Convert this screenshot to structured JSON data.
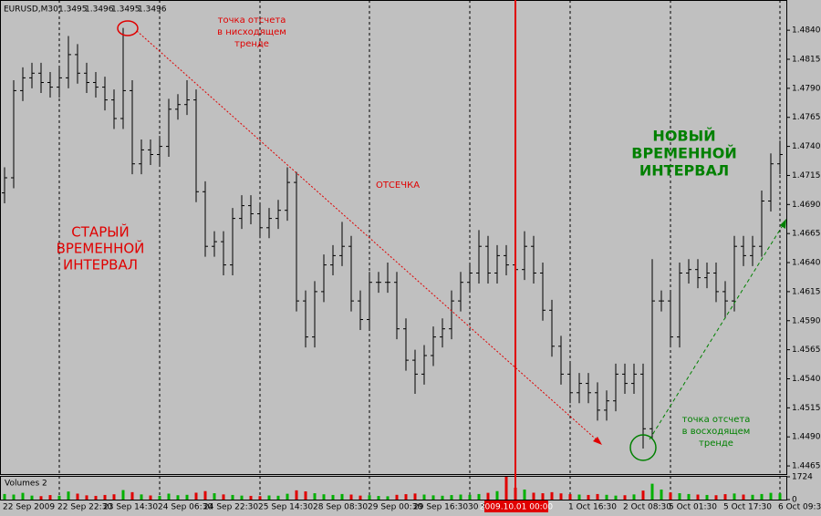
{
  "chart_data": {
    "type": "ohlc",
    "symbol": "EURUSD,M30",
    "header_values": [
      1.3495,
      1.3496,
      1.3495,
      1.3496
    ],
    "categories": [
      "22 Sep 2009",
      null,
      null,
      null,
      null,
      null,
      "22 Sep 22:30",
      null,
      null,
      null,
      null,
      "23 Sep 14:30",
      null,
      null,
      null,
      null,
      null,
      "24 Sep 06:30",
      null,
      null,
      null,
      null,
      "24 Sep 22:30",
      null,
      null,
      null,
      null,
      null,
      "25 Sep 14:30",
      null,
      null,
      null,
      null,
      null,
      "28 Sep 08:30",
      null,
      null,
      null,
      null,
      null,
      "29 Sep 00:30",
      null,
      null,
      null,
      null,
      "29 Sep 16:30",
      null,
      null,
      null,
      null,
      null,
      "30 Sep 08:30",
      null,
      null,
      null,
      null,
      "2009.10.01 00:00",
      null,
      null,
      null,
      null,
      null,
      "1 Oct 16:30",
      null,
      null,
      null,
      null,
      null,
      "2 Oct 08:30",
      null,
      null,
      null,
      null,
      "5 Oct 01:30",
      null,
      null,
      null,
      null,
      null,
      "5 Oct 17:30",
      null,
      null,
      null,
      null,
      null,
      "6 Oct 09:30"
    ],
    "cursor": "2009.10.01 00:00",
    "open": [
      1.47,
      1.4713,
      1.4788,
      1.4799,
      1.4803,
      1.4795,
      1.4791,
      1.4799,
      1.4819,
      1.4803,
      1.4795,
      1.4791,
      1.478,
      1.4764,
      1.4788,
      1.4725,
      1.4737,
      1.4733,
      1.474,
      1.4772,
      1.4776,
      1.478,
      1.4701,
      1.4654,
      1.4658,
      1.4638,
      1.4678,
      1.4689,
      1.4682,
      1.467,
      1.4678,
      1.4685,
      1.4709,
      1.4607,
      1.4576,
      1.4615,
      1.4638,
      1.4646,
      1.4654,
      1.4607,
      1.4591,
      1.4623,
      1.4623,
      1.4623,
      1.4583,
      1.4556,
      1.4544,
      1.456,
      1.4576,
      1.4583,
      1.4607,
      1.4623,
      1.4631,
      1.4654,
      1.4631,
      1.4646,
      1.4638,
      1.4634,
      1.4654,
      1.4631,
      1.4599,
      1.4568,
      1.4544,
      1.4528,
      1.4536,
      1.4528,
      1.4513,
      1.4521,
      1.4544,
      1.4536,
      1.4544,
      1.4497,
      1.4607,
      1.4607,
      1.4576,
      1.4631,
      1.4634,
      1.4627,
      1.4631,
      1.4615,
      1.4607,
      1.4654,
      1.4646,
      1.4654,
      1.4693,
      1.4725
    ],
    "high": [
      1.4722,
      1.4797,
      1.4808,
      1.4812,
      1.4812,
      1.4804,
      1.4808,
      1.4835,
      1.4828,
      1.4812,
      1.4804,
      1.48,
      1.4789,
      1.4842,
      1.4797,
      1.4746,
      1.4746,
      1.4749,
      1.4781,
      1.4785,
      1.4797,
      1.4789,
      1.471,
      1.4667,
      1.4667,
      1.4687,
      1.4698,
      1.4698,
      1.4691,
      1.4687,
      1.4694,
      1.4722,
      1.4718,
      1.4616,
      1.4624,
      1.4647,
      1.4655,
      1.4675,
      1.4663,
      1.4616,
      1.4632,
      1.4632,
      1.464,
      1.4632,
      1.4592,
      1.4565,
      1.4569,
      1.4585,
      1.4592,
      1.4616,
      1.4632,
      1.464,
      1.4668,
      1.4663,
      1.4655,
      1.4655,
      1.4647,
      1.4667,
      1.4663,
      1.464,
      1.4608,
      1.4577,
      1.4553,
      1.4545,
      1.4545,
      1.4537,
      1.453,
      1.4553,
      1.4553,
      1.4553,
      1.4553,
      1.4643,
      1.4616,
      1.4616,
      1.464,
      1.4643,
      1.4643,
      1.464,
      1.464,
      1.4624,
      1.4663,
      1.4663,
      1.4663,
      1.4702,
      1.4734,
      1.4745
    ],
    "low": [
      1.4691,
      1.4704,
      1.4779,
      1.479,
      1.4786,
      1.4782,
      1.4782,
      1.479,
      1.4794,
      1.4786,
      1.4782,
      1.4771,
      1.4755,
      1.4755,
      1.4716,
      1.4716,
      1.4724,
      1.4724,
      1.4731,
      1.4763,
      1.4767,
      1.4692,
      1.4645,
      1.4645,
      1.4629,
      1.4629,
      1.4669,
      1.4673,
      1.4661,
      1.4661,
      1.4669,
      1.4676,
      1.4598,
      1.4567,
      1.4567,
      1.4606,
      1.4629,
      1.4637,
      1.4598,
      1.4582,
      1.4582,
      1.4614,
      1.4614,
      1.4574,
      1.4547,
      1.4527,
      1.4535,
      1.4551,
      1.4567,
      1.4574,
      1.4598,
      1.4614,
      1.4622,
      1.4622,
      1.4622,
      1.4629,
      1.4625,
      1.4625,
      1.4622,
      1.459,
      1.4559,
      1.4535,
      1.4519,
      1.4519,
      1.4519,
      1.4504,
      1.4504,
      1.4512,
      1.4527,
      1.4527,
      1.448,
      1.4488,
      1.4598,
      1.4567,
      1.4567,
      1.4622,
      1.4618,
      1.4618,
      1.4606,
      1.4592,
      1.4598,
      1.4637,
      1.4637,
      1.4645,
      1.4684,
      1.4716
    ],
    "close": [
      1.4713,
      1.4788,
      1.4799,
      1.4803,
      1.4795,
      1.4791,
      1.4799,
      1.4819,
      1.4803,
      1.4795,
      1.4791,
      1.478,
      1.4764,
      1.4788,
      1.4725,
      1.4737,
      1.4733,
      1.474,
      1.4772,
      1.4776,
      1.478,
      1.4701,
      1.4654,
      1.4658,
      1.4638,
      1.4678,
      1.4689,
      1.4682,
      1.467,
      1.4678,
      1.4685,
      1.4709,
      1.4607,
      1.4576,
      1.4615,
      1.4638,
      1.4646,
      1.4654,
      1.4607,
      1.4591,
      1.4623,
      1.4623,
      1.4623,
      1.4583,
      1.4556,
      1.4544,
      1.456,
      1.4576,
      1.4583,
      1.4607,
      1.4623,
      1.4631,
      1.4654,
      1.4631,
      1.4646,
      1.4638,
      1.4634,
      1.4654,
      1.4631,
      1.4599,
      1.4568,
      1.4544,
      1.4528,
      1.4536,
      1.4528,
      1.4513,
      1.4521,
      1.4544,
      1.4536,
      1.4544,
      1.4497,
      1.4607,
      1.4607,
      1.4576,
      1.4631,
      1.4634,
      1.4627,
      1.4631,
      1.4615,
      1.4607,
      1.4654,
      1.4646,
      1.4654,
      1.4693,
      1.4725,
      1.4733
    ],
    "bar_color": "#000000",
    "ylim": [
      1.4458,
      1.4866
    ],
    "yticks": [
      {
        "value": 1.484,
        "label": "1.4840"
      },
      1.4815,
      {
        "value": 1.479,
        "label": "1.4790"
      },
      1.4765,
      {
        "value": 1.474,
        "label": "1.4740"
      },
      1.4715,
      {
        "value": 1.469,
        "label": "1.4690"
      },
      1.4665,
      {
        "value": 1.464,
        "label": "1.4640"
      },
      1.4615,
      {
        "value": 1.459,
        "label": "1.4590"
      },
      1.4565,
      {
        "value": 1.454,
        "label": "1.4540"
      },
      1.4515,
      {
        "value": 1.449,
        "label": "1.4490"
      },
      1.4465
    ],
    "grid": true,
    "volume": {
      "title": "Volumes 2",
      "ylim": [
        0,
        1724
      ],
      "yticks": [
        0,
        1724
      ],
      "up_color": "#00b000",
      "down_color": "#e00000",
      "values": [
        420,
        380,
        510,
        300,
        260,
        340,
        290,
        610,
        450,
        320,
        280,
        350,
        400,
        720,
        560,
        390,
        310,
        280,
        450,
        330,
        360,
        520,
        640,
        480,
        390,
        350,
        300,
        280,
        260,
        310,
        290,
        440,
        700,
        620,
        480,
        400,
        350,
        420,
        380,
        300,
        330,
        270,
        250,
        360,
        410,
        460,
        380,
        320,
        290,
        340,
        380,
        360,
        420,
        510,
        640,
        1724,
        900,
        760,
        520,
        480,
        560,
        470,
        410,
        380,
        350,
        420,
        360,
        300,
        330,
        390,
        680,
        1200,
        760,
        540,
        480,
        420,
        380,
        350,
        330,
        410,
        460,
        380,
        360,
        420,
        510,
        470
      ]
    },
    "annotations": [
      {
        "lines": [
          "точка отсчета",
          "в нисходящем",
          "тренде"
        ],
        "color": "#e00000"
      },
      {
        "lines": [
          "ОТСЕЧКА"
        ],
        "color": "#e00000"
      },
      {
        "lines": [
          "СТАРЫЙ",
          "ВРЕМЕННОЙ",
          "ИНТЕРВАЛ"
        ],
        "color": "#e00000"
      },
      {
        "lines": [
          "НОВЫЙ",
          "ВРЕМЕННОЙ",
          "ИНТЕРВАЛ"
        ],
        "color": "#008000"
      },
      {
        "lines": [
          "точка отсчета",
          "в восходящем",
          "тренде"
        ],
        "color": "#008000"
      }
    ]
  }
}
